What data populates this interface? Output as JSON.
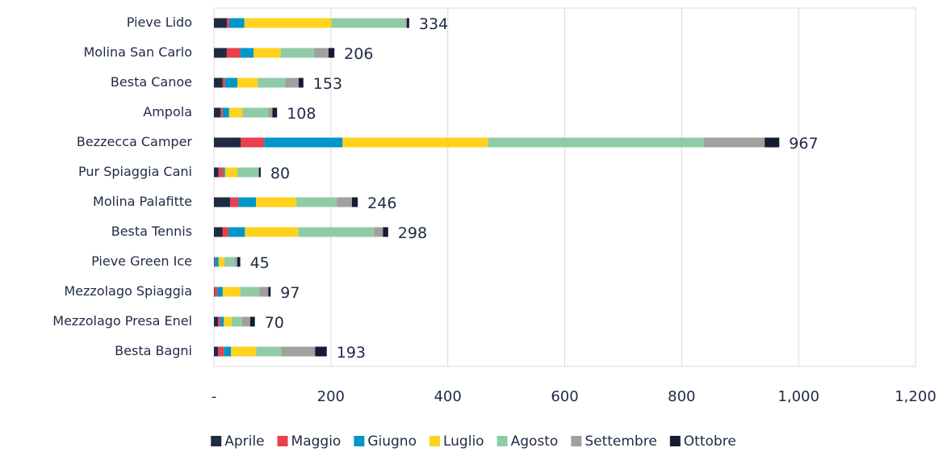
{
  "chart_data": {
    "type": "stacked-barh",
    "categories": [
      "Pieve Lido",
      "Molina San Carlo",
      "Besta Canoe",
      "Ampola",
      "Bezzecca Camper",
      "Pur Spiaggia Cani",
      "Molina Palafitte",
      "Besta Tennis",
      "Pieve Green Ice",
      "Mezzolago Spiaggia",
      "Mezzolago Presa Enel",
      "Besta Bagni"
    ],
    "series": [
      {
        "name": "Aprile",
        "color": "#1f2a44",
        "values": [
          22,
          22,
          15,
          11,
          46,
          8,
          28,
          15,
          1,
          1,
          7,
          7
        ]
      },
      {
        "name": "Maggio",
        "color": "#e8414d",
        "values": [
          4,
          23,
          4,
          4,
          40,
          8,
          14,
          10,
          1,
          5,
          4,
          10
        ]
      },
      {
        "name": "Giugno",
        "color": "#0096c8",
        "values": [
          26,
          23,
          21,
          11,
          134,
          3,
          30,
          28,
          6,
          9,
          6,
          12
        ]
      },
      {
        "name": "Luglio",
        "color": "#ffd21e",
        "values": [
          149,
          46,
          35,
          23,
          249,
          21,
          69,
          91,
          10,
          30,
          13,
          43
        ]
      },
      {
        "name": "Agosto",
        "color": "#8fcca6",
        "values": [
          126,
          57,
          47,
          44,
          369,
          35,
          69,
          130,
          18,
          33,
          18,
          43
        ]
      },
      {
        "name": "Settembre",
        "color": "#a0a0a0",
        "values": [
          3,
          25,
          23,
          7,
          104,
          2,
          26,
          15,
          4,
          15,
          14,
          58
        ]
      },
      {
        "name": "Ottobre",
        "color": "#141c33",
        "values": [
          4,
          10,
          8,
          8,
          25,
          3,
          10,
          9,
          5,
          4,
          8,
          20
        ]
      }
    ],
    "totals": [
      334,
      206,
      153,
      108,
      967,
      80,
      246,
      298,
      45,
      97,
      70,
      193
    ],
    "xlim": [
      0,
      1200
    ],
    "xticks": [
      {
        "value": 0,
        "label": "-"
      },
      200,
      400,
      600,
      800,
      {
        "value": 1000,
        "label": "1,000"
      },
      {
        "value": 1200,
        "label": "1,200"
      }
    ],
    "grid": true,
    "legend": "bottom"
  }
}
